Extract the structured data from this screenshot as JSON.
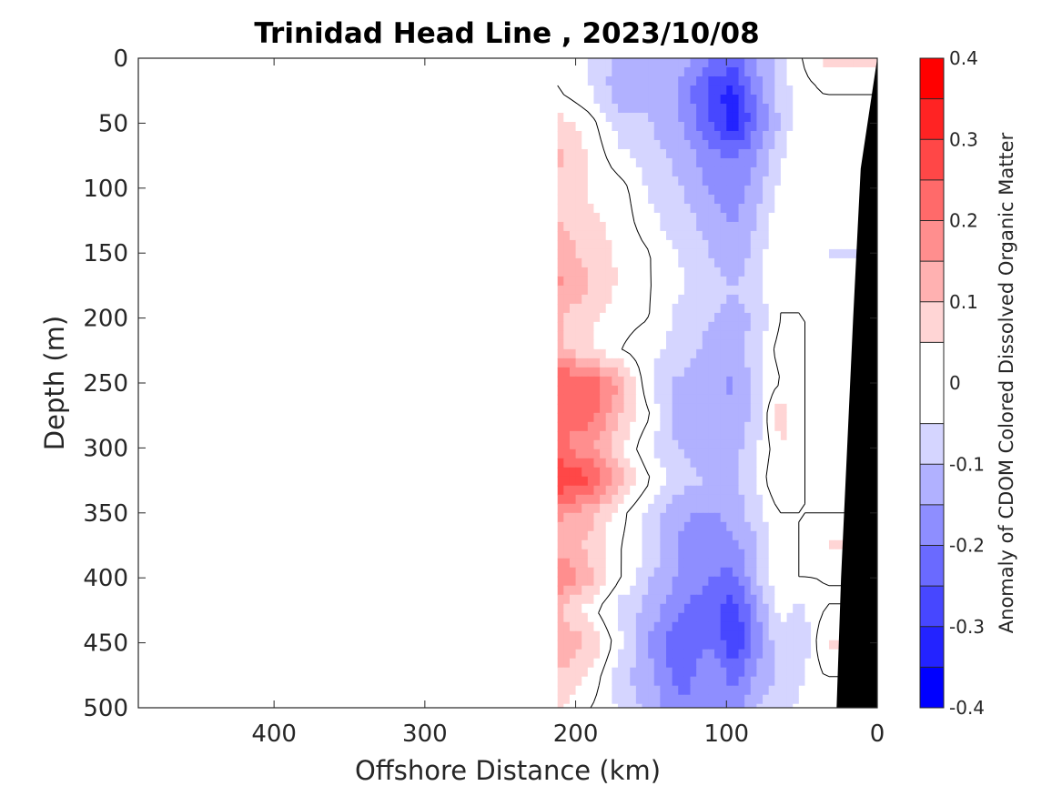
{
  "chart_data": {
    "type": "heatmap",
    "title": "Trinidad Head Line , 2023/10/08",
    "xlabel": "Offshore Distance (km)",
    "ylabel": "Depth (m)",
    "colorbar_label": "Anomaly of CDOM Colored Dissolved Organic Matter",
    "xlim": [
      490,
      0
    ],
    "ylim": [
      500,
      0
    ],
    "x_reversed": true,
    "y_reversed": true,
    "x_ticks": [
      400,
      300,
      200,
      100,
      0
    ],
    "x_tick_labels": [
      "400",
      "300",
      "200",
      "100",
      "0"
    ],
    "y_ticks": [
      0,
      50,
      100,
      150,
      200,
      250,
      300,
      350,
      400,
      450,
      500
    ],
    "y_tick_labels": [
      "0",
      "50",
      "100",
      "150",
      "200",
      "250",
      "300",
      "350",
      "400",
      "450",
      "500"
    ],
    "clim": [
      -0.4,
      0.4
    ],
    "colorbar_levels": [
      -0.4,
      -0.35,
      -0.3,
      -0.25,
      -0.2,
      -0.15,
      -0.1,
      -0.05,
      0.05,
      0.1,
      0.15,
      0.2,
      0.25,
      0.3,
      0.35,
      0.4
    ],
    "colorbar_colors": [
      "#0000ff",
      "#2323ff",
      "#4747ff",
      "#6a6aff",
      "#8e8eff",
      "#b1b1ff",
      "#d5d5ff",
      "#ffffff",
      "#ffd5d5",
      "#ffb1b1",
      "#ff8e8e",
      "#ff6a6a",
      "#ff4747",
      "#ff2323",
      "#ff0000"
    ],
    "colorbar_ticks": [
      -0.4,
      -0.3,
      -0.2,
      -0.1,
      0,
      0.1,
      0.2,
      0.3,
      0.4
    ],
    "colorbar_tick_labels": [
      "-0.4",
      "-0.3",
      "-0.2",
      "-0.1",
      "0",
      "0.1",
      "0.2",
      "0.3",
      "0.4"
    ],
    "data_extent_km": [
      0,
      212
    ],
    "contour_level": 0,
    "bathymetry_color": "#000000",
    "bathymetry_km": [
      [
        0,
        0
      ],
      [
        11,
        85
      ],
      [
        16,
        200
      ],
      [
        20,
        300
      ],
      [
        24,
        400
      ],
      [
        27,
        500
      ]
    ],
    "depths": [
      0,
      25,
      50,
      75,
      100,
      125,
      150,
      175,
      200,
      225,
      250,
      275,
      300,
      325,
      350,
      375,
      400,
      425,
      450,
      475,
      500
    ],
    "distances_km": [
      212,
      190,
      170,
      150,
      130,
      110,
      95,
      80,
      65,
      50,
      35
    ],
    "anomaly_grid": [
      [
        0.0,
        -0.06,
        -0.12,
        -0.1,
        -0.12,
        -0.2,
        -0.22,
        -0.14,
        -0.08,
        0.0,
        0.07
      ],
      [
        0.0,
        -0.05,
        -0.14,
        -0.1,
        -0.16,
        -0.28,
        -0.32,
        -0.18,
        -0.08,
        -0.02,
        0.0
      ],
      [
        0.08,
        0.02,
        -0.08,
        -0.1,
        -0.15,
        -0.25,
        -0.34,
        -0.2,
        -0.1,
        0.0,
        0.0
      ],
      [
        0.12,
        0.04,
        -0.04,
        -0.08,
        -0.12,
        -0.18,
        -0.2,
        -0.16,
        -0.06,
        0.0,
        0.0
      ],
      [
        0.09,
        0.04,
        0.02,
        -0.06,
        -0.1,
        -0.16,
        -0.18,
        -0.12,
        -0.04,
        0.0,
        0.0
      ],
      [
        0.1,
        0.06,
        0.03,
        -0.04,
        -0.08,
        -0.12,
        -0.16,
        -0.1,
        -0.02,
        0.0,
        0.0
      ],
      [
        0.13,
        0.08,
        0.04,
        0.0,
        -0.06,
        -0.1,
        -0.14,
        -0.08,
        0.0,
        0.0,
        -0.06
      ],
      [
        0.16,
        0.1,
        0.04,
        0.0,
        -0.04,
        -0.08,
        -0.1,
        -0.06,
        0.0,
        0.0,
        0.0
      ],
      [
        0.1,
        0.06,
        0.02,
        0.0,
        -0.08,
        -0.1,
        -0.12,
        -0.1,
        0.0,
        0.0,
        0.0
      ],
      [
        0.12,
        0.05,
        0.0,
        -0.04,
        -0.06,
        -0.12,
        -0.14,
        -0.06,
        0.02,
        0.0,
        0.0
      ],
      [
        0.26,
        0.24,
        0.14,
        -0.06,
        -0.12,
        -0.14,
        -0.16,
        -0.08,
        0.0,
        0.0,
        0.0
      ],
      [
        0.2,
        0.22,
        0.1,
        0.0,
        -0.16,
        -0.14,
        -0.14,
        -0.08,
        0.1,
        0.0,
        0.0
      ],
      [
        0.22,
        0.16,
        0.06,
        -0.06,
        -0.1,
        -0.14,
        -0.12,
        -0.06,
        0.04,
        0.0,
        0.0
      ],
      [
        0.3,
        0.26,
        0.12,
        0.0,
        -0.08,
        -0.1,
        -0.12,
        -0.04,
        0.06,
        0.0,
        0.0
      ],
      [
        0.16,
        0.12,
        0.02,
        -0.08,
        -0.14,
        -0.16,
        -0.12,
        -0.08,
        0.0,
        0.0,
        0.0
      ],
      [
        0.14,
        0.08,
        0.0,
        -0.06,
        -0.16,
        -0.18,
        -0.16,
        -0.1,
        0.0,
        0.0,
        0.06
      ],
      [
        0.2,
        0.12,
        0.0,
        -0.1,
        -0.16,
        -0.2,
        -0.22,
        -0.1,
        0.0,
        0.0,
        0.0
      ],
      [
        0.1,
        0.02,
        -0.08,
        -0.12,
        -0.2,
        -0.24,
        -0.28,
        -0.16,
        -0.04,
        -0.06,
        0.0
      ],
      [
        0.14,
        0.1,
        -0.04,
        -0.16,
        -0.26,
        -0.2,
        -0.3,
        -0.18,
        -0.06,
        -0.1,
        0.06
      ],
      [
        0.1,
        0.04,
        -0.08,
        -0.14,
        -0.22,
        -0.16,
        -0.22,
        -0.14,
        -0.1,
        -0.06,
        0.0
      ],
      [
        0.06,
        0.0,
        -0.06,
        -0.12,
        -0.2,
        -0.18,
        -0.18,
        -0.1,
        -0.06,
        -0.04,
        0.0
      ]
    ]
  }
}
